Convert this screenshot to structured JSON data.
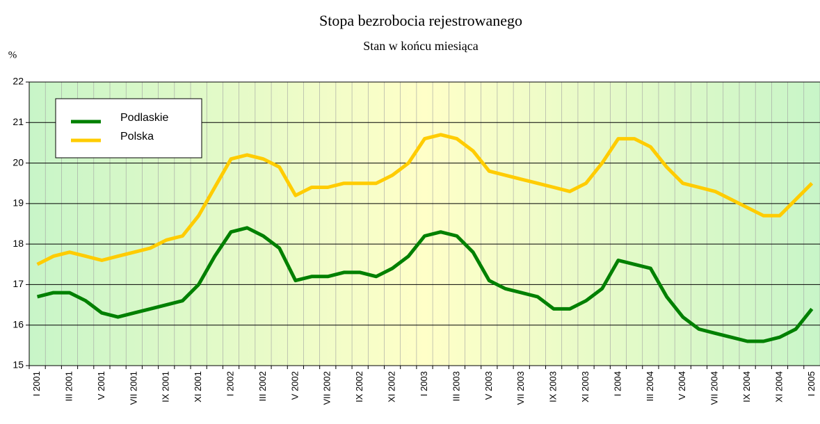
{
  "chart_data": {
    "type": "line",
    "title": "Stopa bezrobocia rejestrowanego",
    "subtitle": "Stan w końcu miesiąca",
    "y_label": "%",
    "categories": [
      "I 2001",
      null,
      "III 2001",
      null,
      "V 2001",
      null,
      "VII 2001",
      null,
      "IX 2001",
      null,
      "XI 2001",
      null,
      "I 2002",
      null,
      "III 2002",
      null,
      "V 2002",
      null,
      "VII 2002",
      null,
      "IX 2002",
      null,
      "XI 2002",
      null,
      "I 2003",
      null,
      "III 2003",
      null,
      "V 2003",
      null,
      "VII 2003",
      null,
      "IX 2003",
      null,
      "XI 2003",
      null,
      "I 2004",
      null,
      "III 2004",
      null,
      "V 2004",
      null,
      "VII 2004",
      null,
      "IX 2004",
      null,
      "XI 2004",
      null,
      "I 2005"
    ],
    "series": [
      {
        "name": "Podlaskie",
        "color": "#008000",
        "values": [
          16.7,
          16.8,
          16.8,
          16.6,
          16.3,
          16.2,
          16.3,
          16.4,
          16.5,
          16.6,
          17.0,
          17.7,
          18.3,
          18.4,
          18.2,
          17.9,
          17.1,
          17.2,
          17.2,
          17.3,
          17.3,
          17.2,
          17.4,
          17.7,
          18.2,
          18.3,
          18.2,
          17.8,
          17.1,
          16.9,
          16.8,
          16.7,
          16.4,
          16.4,
          16.6,
          16.9,
          17.6,
          17.5,
          17.4,
          16.7,
          16.2,
          15.9,
          15.8,
          15.7,
          15.6,
          15.6,
          15.7,
          15.9,
          16.4
        ]
      },
      {
        "name": "Polska",
        "color": "#ffcc00",
        "values": [
          17.5,
          17.7,
          17.8,
          17.7,
          17.6,
          17.7,
          17.8,
          17.9,
          18.1,
          18.2,
          18.7,
          19.4,
          20.1,
          20.2,
          20.1,
          19.9,
          19.2,
          19.4,
          19.4,
          19.5,
          19.5,
          19.5,
          19.7,
          20.0,
          20.6,
          20.7,
          20.6,
          20.3,
          19.8,
          19.7,
          19.6,
          19.5,
          19.4,
          19.3,
          19.5,
          20.0,
          20.6,
          20.6,
          20.4,
          19.9,
          19.5,
          19.4,
          19.3,
          19.1,
          18.9,
          18.7,
          18.7,
          19.1,
          19.5
        ]
      }
    ],
    "ylim": [
      15,
      22
    ],
    "yticks": [
      15,
      16,
      17,
      18,
      19,
      20,
      21,
      22
    ],
    "grid": true,
    "legend": "upper left"
  }
}
